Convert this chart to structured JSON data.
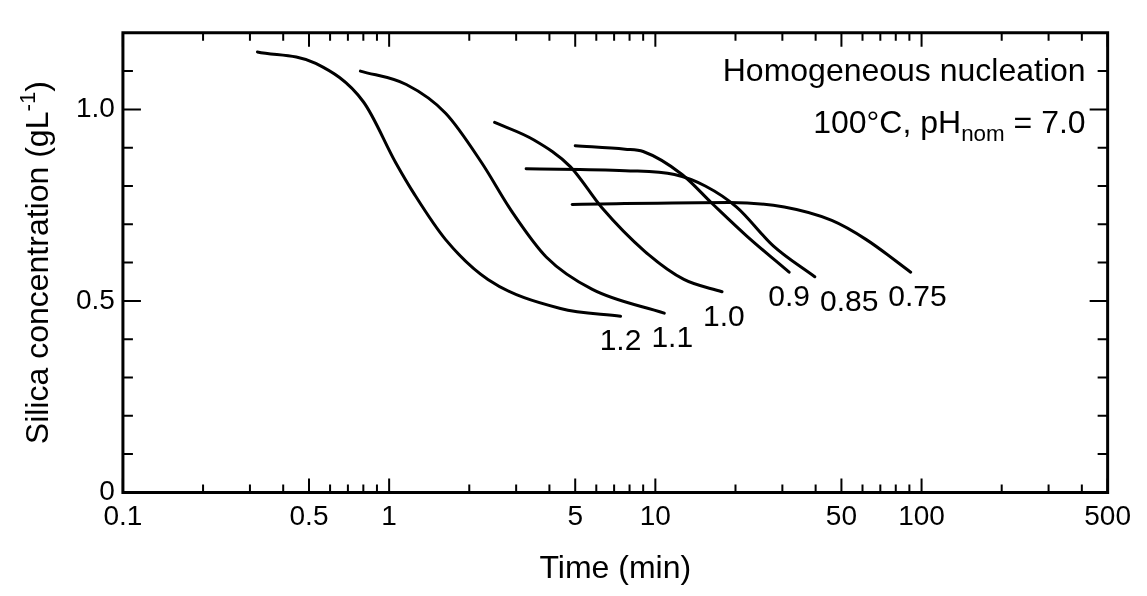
{
  "chart_data": {
    "type": "line",
    "xlabel": "Time (min)",
    "ylabel": "Silica concentration (gL$^{-1}$)",
    "annotations": [
      "Homogeneous nucleation",
      "100°C, pH$_{nom}$ = 7.0"
    ],
    "log": "x",
    "xlim": [
      0.1,
      500
    ],
    "ylim": [
      0,
      1.2
    ],
    "xticks": [
      0.1,
      {
        "value": 0.2,
        "label": null
      },
      {
        "value": 0.3,
        "label": null
      },
      {
        "value": 0.4,
        "label": null
      },
      0.5,
      {
        "value": 0.6,
        "label": null
      },
      {
        "value": 0.7,
        "label": null
      },
      {
        "value": 0.8,
        "label": null
      },
      {
        "value": 0.9,
        "label": null
      },
      1,
      {
        "value": 2,
        "label": null
      },
      {
        "value": 3,
        "label": null
      },
      {
        "value": 4,
        "label": null
      },
      5,
      {
        "value": 6,
        "label": null
      },
      {
        "value": 7,
        "label": null
      },
      {
        "value": 8,
        "label": null
      },
      {
        "value": 9,
        "label": null
      },
      10,
      {
        "value": 20,
        "label": null
      },
      {
        "value": 30,
        "label": null
      },
      {
        "value": 40,
        "label": null
      },
      50,
      {
        "value": 60,
        "label": null
      },
      {
        "value": 70,
        "label": null
      },
      {
        "value": 80,
        "label": null
      },
      {
        "value": 90,
        "label": null
      },
      100,
      {
        "value": 200,
        "label": null
      },
      {
        "value": 300,
        "label": null
      },
      {
        "value": 400,
        "label": null
      },
      500
    ],
    "yticks": [
      0,
      {
        "value": 0.1,
        "label": null
      },
      {
        "value": 0.2,
        "label": null
      },
      {
        "value": 0.3,
        "label": null
      },
      {
        "value": 0.4,
        "label": null
      },
      0.5,
      {
        "value": 0.6,
        "label": null
      },
      {
        "value": 0.7,
        "label": null
      },
      {
        "value": 0.8,
        "label": null
      },
      {
        "value": 0.9,
        "label": null
      },
      {
        "value": 1.0,
        "label": "1.0"
      },
      {
        "value": 1.1,
        "label": null
      }
    ],
    "grid": false,
    "legend": false,
    "marker": "none",
    "line_style": "solid",
    "series": [
      {
        "name": "1.2",
        "color": "#000000",
        "x": [
          0.32,
          0.53,
          0.8,
          1.06,
          1.24,
          1.63,
          2.35,
          4.4,
          7.4
        ],
        "values": [
          1.15,
          1.12,
          1.02,
          0.86,
          0.78,
          0.66,
          0.556,
          0.48,
          0.46
        ]
      },
      {
        "name": "1.1",
        "color": "#000000",
        "x": [
          0.78,
          1.16,
          1.63,
          2.23,
          2.88,
          3.9,
          5.8,
          10.8
        ],
        "values": [
          1.1,
          1.065,
          0.99,
          0.86,
          0.735,
          0.614,
          0.53,
          0.468
        ]
      },
      {
        "name": "1.0",
        "color": "#000000",
        "x": [
          2.49,
          3.5,
          4.8,
          6.3,
          9.1,
          12.8,
          17.8
        ],
        "values": [
          0.966,
          0.92,
          0.85,
          0.743,
          0.63,
          0.556,
          0.524
        ]
      },
      {
        "name": "0.9",
        "color": "#000000",
        "x": [
          5.0,
          7.7,
          9.0,
          12.6,
          16.3,
          22,
          31.8
        ],
        "values": [
          0.905,
          0.896,
          0.89,
          0.83,
          0.755,
          0.67,
          0.575
        ]
      },
      {
        "name": "0.85",
        "color": "#000000",
        "x": [
          3.27,
          7.7,
          11.8,
          15.4,
          20.2,
          27.8,
          39.7
        ],
        "values": [
          0.845,
          0.84,
          0.83,
          0.8,
          0.745,
          0.643,
          0.563
        ]
      },
      {
        "name": "0.75",
        "color": "#000000",
        "x": [
          4.87,
          19,
          30.5,
          46,
          62,
          91
        ],
        "values": [
          0.752,
          0.757,
          0.745,
          0.71,
          0.66,
          0.575
        ]
      }
    ]
  }
}
